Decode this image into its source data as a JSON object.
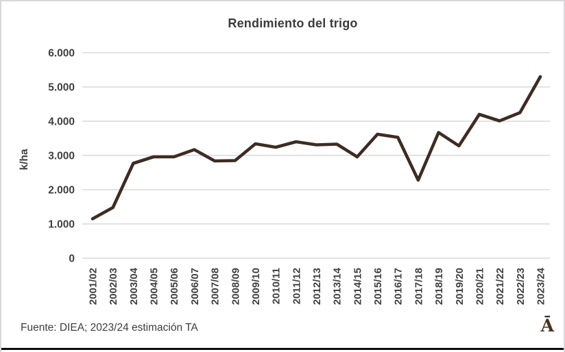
{
  "chart_data": {
    "type": "line",
    "title": "Rendimiento del trigo",
    "ylabel": "k/ha",
    "categories": [
      "2001/02",
      "2002/03",
      "2003/04",
      "2004/05",
      "2005/06",
      "2006/07",
      "2007/08",
      "2008/09",
      "2009/10",
      "2010/11",
      "2011/12",
      "2012/13",
      "2013/14",
      "2014/15",
      "2015/16",
      "2016/17",
      "2017/18",
      "2018/19",
      "2019/20",
      "2020/21",
      "2021/22",
      "2022/23",
      "2023/24"
    ],
    "values": [
      1150,
      1480,
      2770,
      2960,
      2960,
      3170,
      2840,
      2850,
      3340,
      3240,
      3400,
      3310,
      3330,
      2960,
      3620,
      3530,
      2280,
      3670,
      3280,
      4200,
      4010,
      4250,
      5300
    ],
    "ylim": [
      0,
      6000
    ],
    "ytick_step": 1000,
    "ytick_labels": [
      "0",
      "1.000",
      "2.000",
      "3.000",
      "4.000",
      "5.000",
      "6.000"
    ],
    "grid": true,
    "legend": "none",
    "colors": {
      "line": "#3e2c23",
      "grid": "#d9d9d9",
      "tick_text": "#404040",
      "title_text": "#3b3b3b"
    }
  },
  "footer": {
    "source_text": "Fuente: DIEA; 2023/24 estimación TA",
    "logo_glyph": "Ā"
  }
}
